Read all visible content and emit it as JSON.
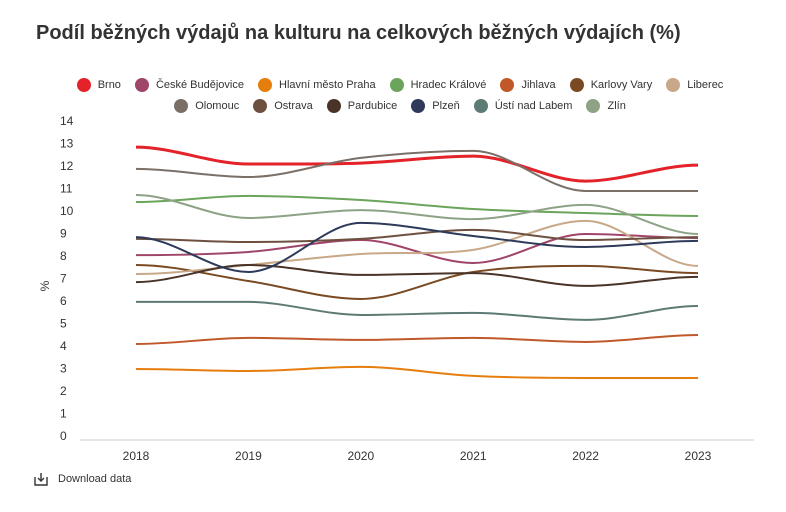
{
  "chart_data": {
    "type": "line",
    "title": "Podíl běžných výdajů na kulturu na celkových běžných výdajích (%)",
    "xlabel": "",
    "ylabel": "%",
    "x": [
      "2018",
      "2019",
      "2020",
      "2021",
      "2022",
      "2023"
    ],
    "ylim": [
      0,
      14
    ],
    "yticks": [
      "0",
      "1",
      "2",
      "3",
      "4",
      "5",
      "6",
      "7",
      "8",
      "9",
      "10",
      "11",
      "12",
      "13",
      "14"
    ],
    "legend_position": "top",
    "series": [
      {
        "name": "Brno",
        "color": "#e3222a",
        "width": 3,
        "values": [
          12.84,
          12.09,
          12.13,
          12.44,
          11.33,
          12.04
        ]
      },
      {
        "name": "České Budějovice",
        "color": "#a0456a",
        "values": [
          8.04,
          8.18,
          8.71,
          7.69,
          8.98,
          8.8
        ]
      },
      {
        "name": "Hlavní město Praha",
        "color": "#e67e0e",
        "values": [
          2.98,
          2.89,
          3.07,
          2.67,
          2.58,
          2.58
        ]
      },
      {
        "name": "Hradec Králové",
        "color": "#6aa55b",
        "values": [
          10.4,
          10.67,
          10.49,
          10.09,
          9.91,
          9.78
        ]
      },
      {
        "name": "Jihlava",
        "color": "#c0582a",
        "values": [
          4.09,
          4.36,
          4.27,
          4.36,
          4.18,
          4.49
        ]
      },
      {
        "name": "Karlovy Vary",
        "color": "#7a4a22",
        "values": [
          7.6,
          6.89,
          6.09,
          7.29,
          7.56,
          7.24
        ]
      },
      {
        "name": "Liberec",
        "color": "#c8a888",
        "values": [
          7.2,
          7.6,
          8.09,
          8.27,
          9.56,
          7.56
        ]
      },
      {
        "name": "Olomouc",
        "color": "#7b7068",
        "values": [
          11.87,
          11.51,
          12.36,
          12.67,
          10.89,
          10.89
        ]
      },
      {
        "name": "Ostrava",
        "color": "#6e5040",
        "values": [
          8.76,
          8.62,
          8.76,
          9.16,
          8.71,
          8.84
        ]
      },
      {
        "name": "Pardubice",
        "color": "#4a3428",
        "values": [
          6.84,
          7.6,
          7.16,
          7.24,
          6.67,
          7.07
        ]
      },
      {
        "name": "Plzeň",
        "color": "#2e3a5a",
        "values": [
          8.84,
          7.29,
          9.47,
          8.89,
          8.4,
          8.67
        ]
      },
      {
        "name": "Ústí nad Labem",
        "color": "#5e7a74",
        "values": [
          5.96,
          5.96,
          5.38,
          5.47,
          5.16,
          5.78
        ]
      },
      {
        "name": "Zlín",
        "color": "#8ea285",
        "values": [
          10.71,
          9.69,
          10.04,
          9.64,
          10.27,
          8.98
        ]
      }
    ]
  },
  "download_label": "Download data"
}
